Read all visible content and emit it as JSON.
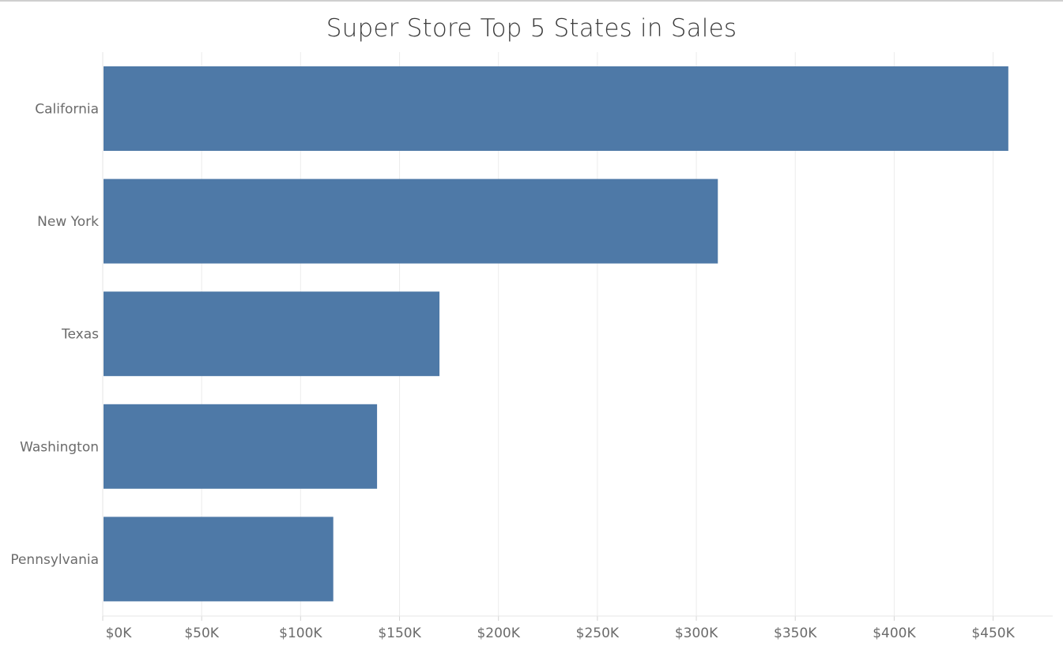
{
  "chart_data": {
    "type": "bar",
    "orientation": "horizontal",
    "title": "Super Store Top 5 States in Sales",
    "categories": [
      "California",
      "New York",
      "Texas",
      "Washington",
      "Pennsylvania"
    ],
    "values": [
      457688,
      310876,
      170188,
      138641,
      116512
    ],
    "xlabel": "",
    "ylabel": "",
    "xlim": [
      0,
      480000
    ],
    "x_ticks": [
      0,
      50000,
      100000,
      150000,
      200000,
      250000,
      300000,
      350000,
      400000,
      450000
    ],
    "x_tick_labels": [
      "$0K",
      "$50K",
      "$100K",
      "$150K",
      "$200K",
      "$250K",
      "$300K",
      "$350K",
      "$400K",
      "$450K"
    ],
    "grid": "vertical",
    "legend": "none",
    "bar_color": "#4e79a7"
  }
}
